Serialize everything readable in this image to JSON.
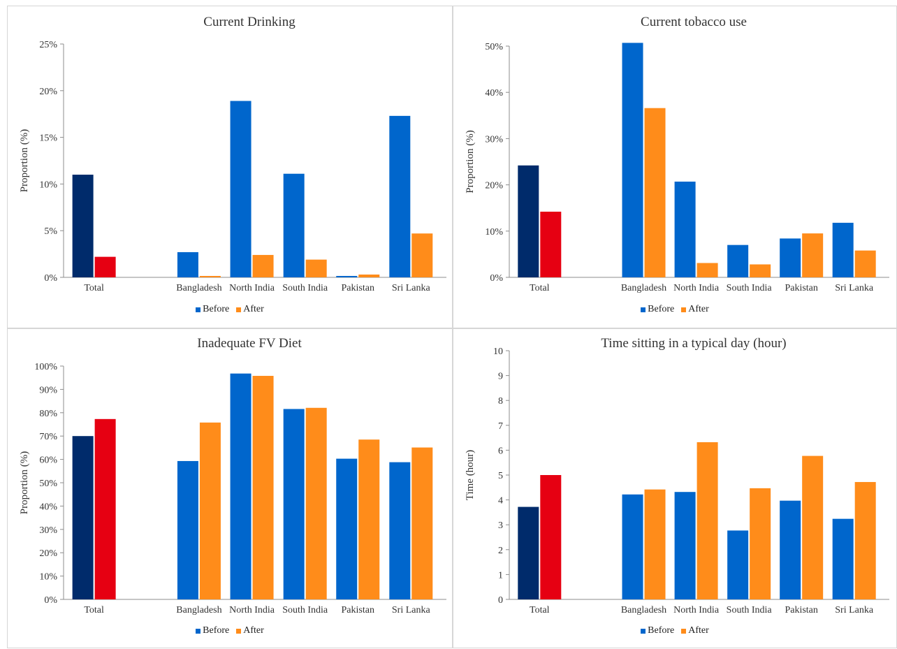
{
  "legend_labels": [
    "Before",
    "After"
  ],
  "colors": {
    "before": "#0066CC",
    "after": "#FF8C1A",
    "total_before": "#002B6B",
    "total_after": "#E60012"
  },
  "chart_data": [
    {
      "type": "bar",
      "title": "Current Drinking",
      "ylabel": "Proportion (%)",
      "xlabel": "",
      "categories": [
        "Total",
        "Bangladesh",
        "North India",
        "South India",
        "Pakistan",
        "Sri Lanka"
      ],
      "ylim": [
        0,
        25
      ],
      "yticks": [
        0,
        5,
        10,
        15,
        20,
        25
      ],
      "ytick_labels": [
        "0%",
        "5%",
        "10%",
        "15%",
        "20%",
        "25%"
      ],
      "series": [
        {
          "name": "Before",
          "values": [
            11.0,
            2.7,
            18.9,
            11.1,
            0.15,
            17.3
          ]
        },
        {
          "name": "After",
          "values": [
            2.2,
            0.15,
            2.4,
            1.9,
            0.3,
            4.7
          ]
        }
      ],
      "legend": "bottom",
      "grid": false
    },
    {
      "type": "bar",
      "title": "Current tobacco use",
      "ylabel": "Proportion (%)",
      "xlabel": "",
      "categories": [
        "Total",
        "Bangladesh",
        "North India",
        "South India",
        "Pakistan",
        "Sri Lanka"
      ],
      "ylim": [
        0,
        50
      ],
      "yticks": [
        0,
        10,
        20,
        30,
        40,
        50
      ],
      "ytick_labels": [
        "0%",
        "10%",
        "20%",
        "30%",
        "40%",
        "50%"
      ],
      "series": [
        {
          "name": "Before",
          "values": [
            24.2,
            50.7,
            20.7,
            7.0,
            8.4,
            11.8
          ]
        },
        {
          "name": "After",
          "values": [
            14.2,
            36.6,
            3.1,
            2.8,
            9.5,
            5.8
          ]
        }
      ],
      "legend": "bottom",
      "grid": false
    },
    {
      "type": "bar",
      "title": "Inadequate FV Diet",
      "ylabel": "Proportion (%)",
      "xlabel": "",
      "categories": [
        "Total",
        "Bangladesh",
        "North India",
        "South India",
        "Pakistan",
        "Sri Lanka"
      ],
      "ylim": [
        0,
        100
      ],
      "yticks": [
        0,
        10,
        20,
        30,
        40,
        50,
        60,
        70,
        80,
        90,
        100
      ],
      "ytick_labels": [
        "0%",
        "10%",
        "20%",
        "30%",
        "40%",
        "50%",
        "60%",
        "70%",
        "80%",
        "90%",
        "100%"
      ],
      "series": [
        {
          "name": "Before",
          "values": [
            70.0,
            59.3,
            96.8,
            81.6,
            60.3,
            58.8
          ]
        },
        {
          "name": "After",
          "values": [
            77.3,
            75.8,
            95.8,
            82.1,
            68.5,
            65.1
          ]
        }
      ],
      "legend": "bottom",
      "grid": false
    },
    {
      "type": "bar",
      "title": "Time sitting in a typical day (hour)",
      "ylabel": "Time (hour)",
      "xlabel": "",
      "categories": [
        "Total",
        "Bangladesh",
        "North India",
        "South India",
        "Pakistan",
        "Sri Lanka"
      ],
      "ylim": [
        0,
        10
      ],
      "yticks": [
        0,
        1,
        2,
        3,
        4,
        5,
        6,
        7,
        8,
        9,
        10
      ],
      "ytick_labels": [
        "0",
        "1",
        "2",
        "3",
        "4",
        "5",
        "6",
        "7",
        "8",
        "9",
        "10"
      ],
      "series": [
        {
          "name": "Before",
          "values": [
            3.72,
            4.22,
            4.32,
            2.77,
            3.97,
            3.24
          ]
        },
        {
          "name": "After",
          "values": [
            5.0,
            4.42,
            6.32,
            4.47,
            5.77,
            4.72
          ]
        }
      ],
      "legend": "bottom",
      "grid": false
    }
  ]
}
